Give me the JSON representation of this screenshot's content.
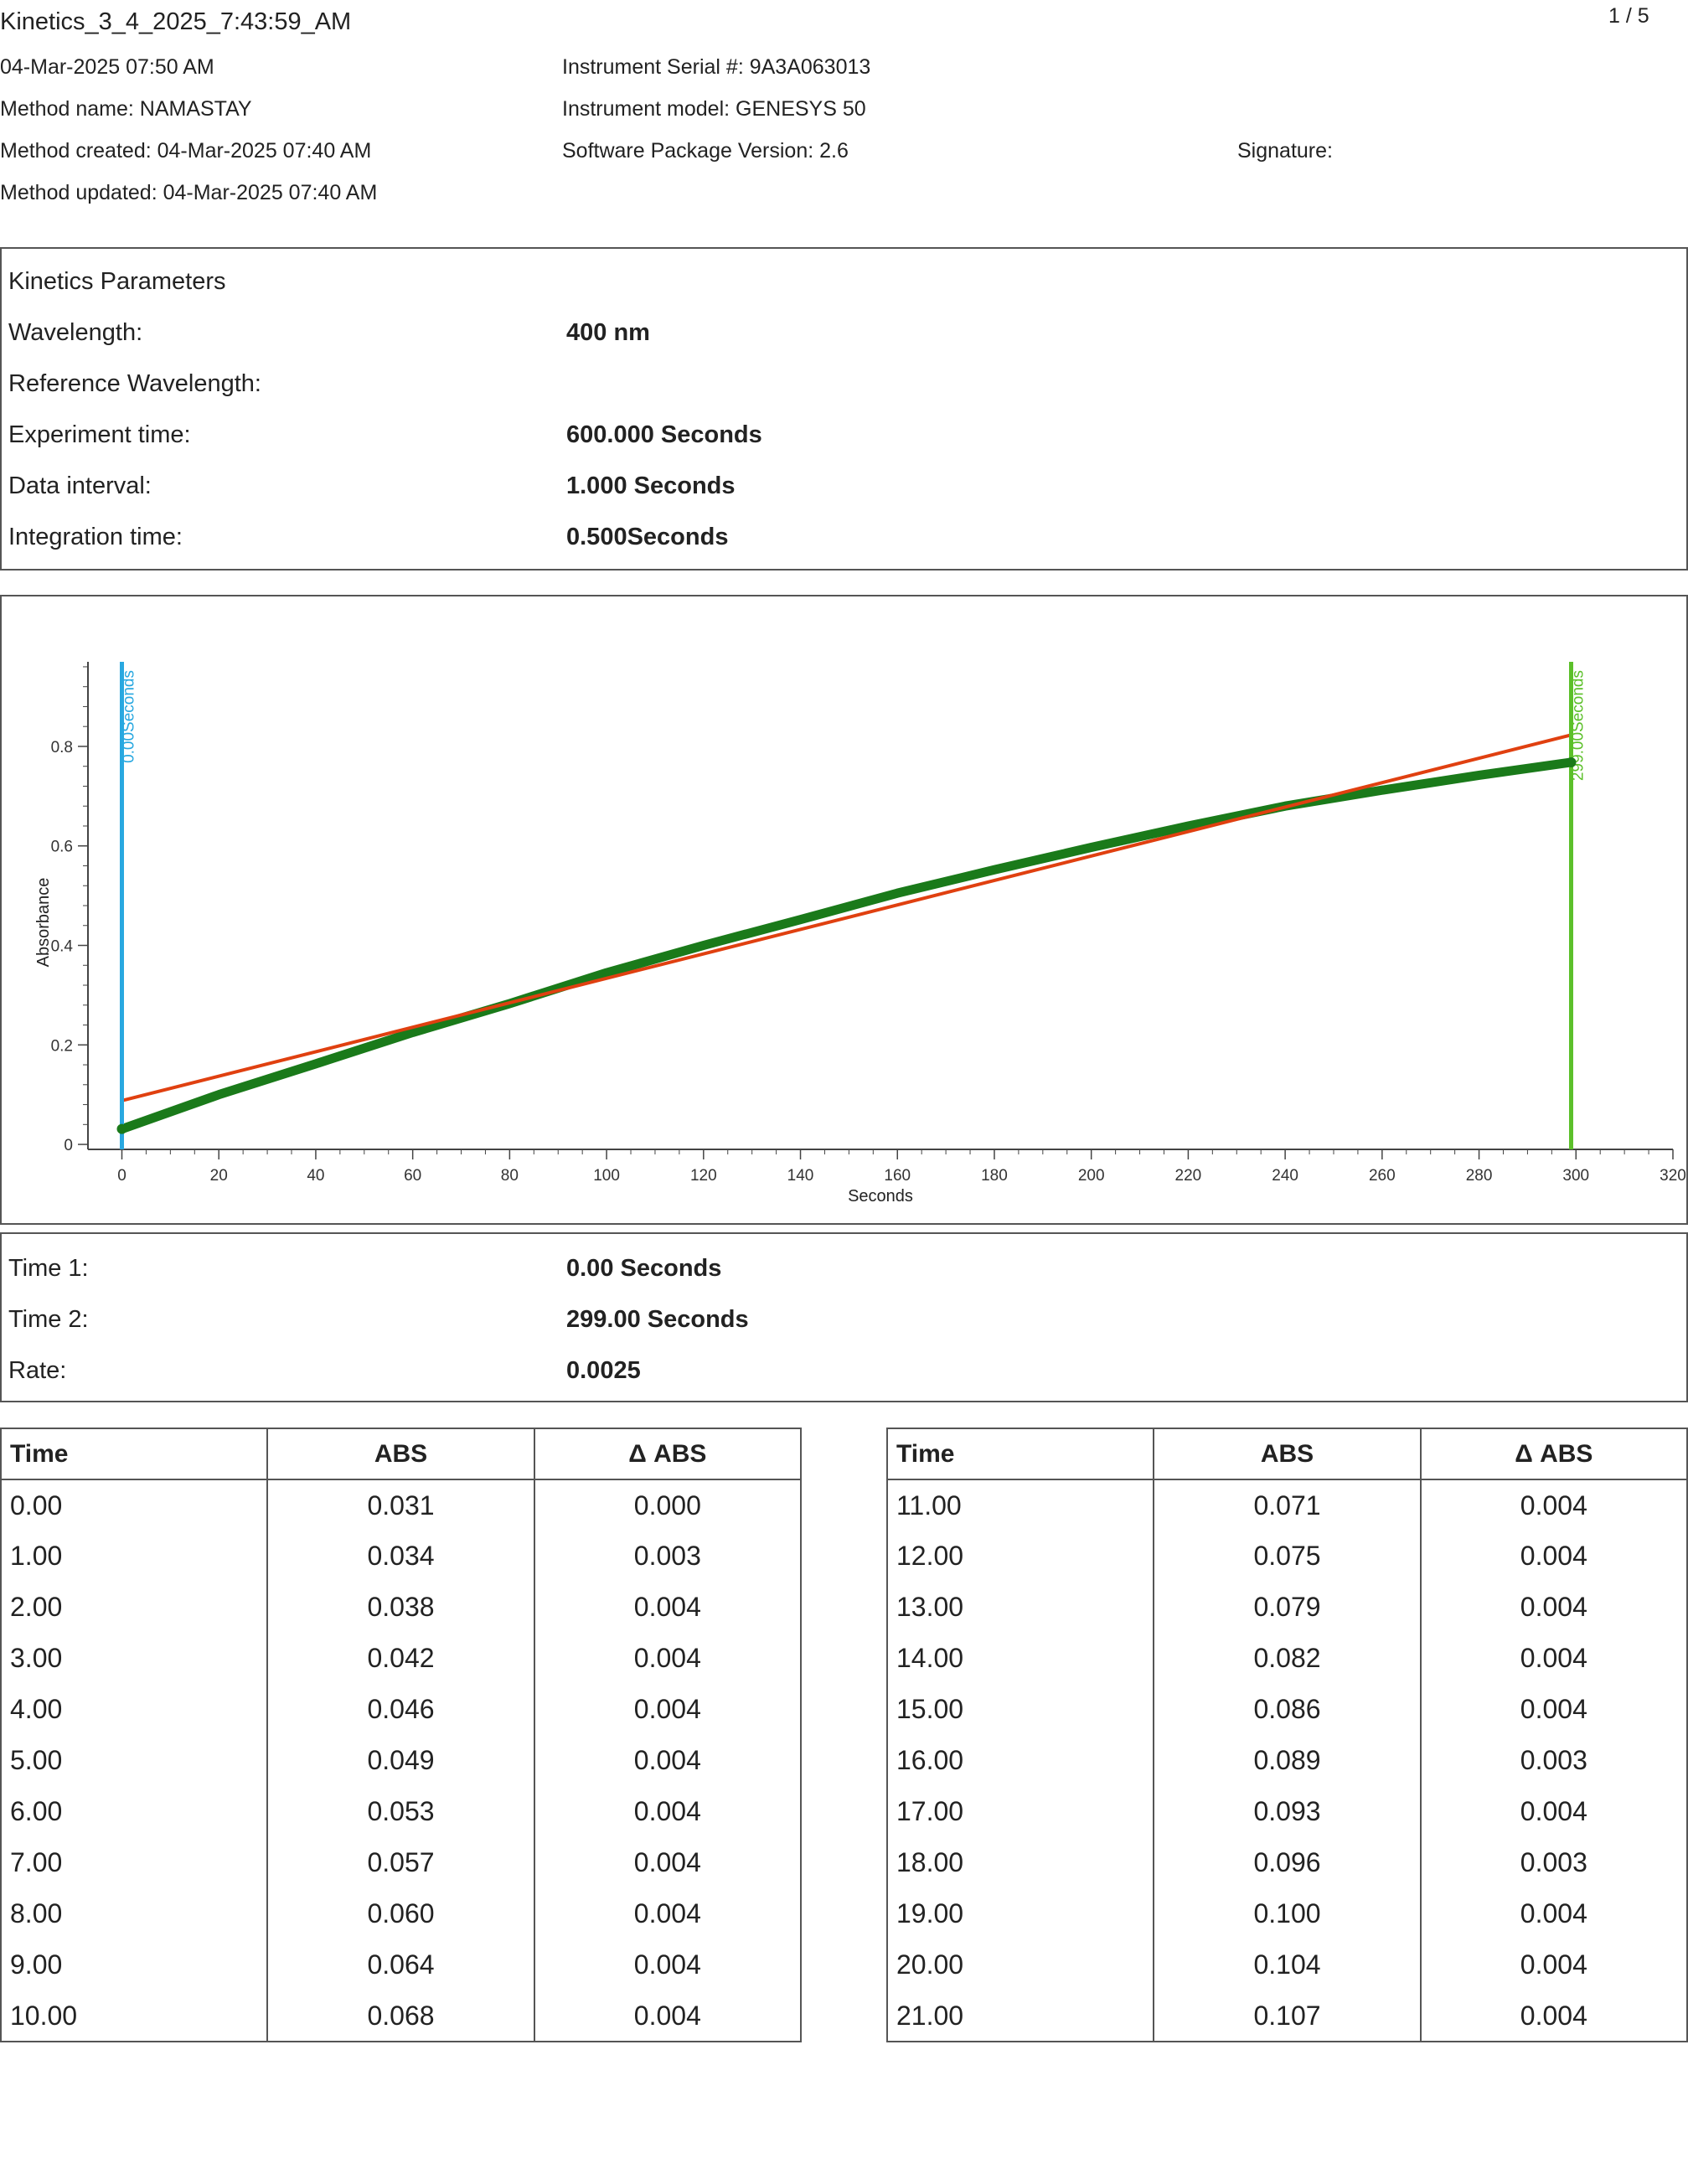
{
  "header": {
    "file_title": "Kinetics_3_4_2025_7:43:59_AM",
    "page_indicator": "1 / 5",
    "date": "04-Mar-2025 07:50 AM",
    "method_name": "Method name: NAMASTAY",
    "method_created": "Method created: 04-Mar-2025 07:40 AM",
    "method_updated": "Method updated: 04-Mar-2025 07:40 AM",
    "instrument_serial": "Instrument Serial #: 9A3A063013",
    "instrument_model": "Instrument model: GENESYS 50",
    "software_version": "Software Package Version: 2.6",
    "signature": "Signature:"
  },
  "params": {
    "heading": "Kinetics Parameters",
    "rows": [
      {
        "label": "Wavelength:",
        "value": "400 nm"
      },
      {
        "label": "Reference Wavelength:",
        "value": ""
      },
      {
        "label": "Experiment time:",
        "value": "600.000 Seconds"
      },
      {
        "label": "Data interval:",
        "value": "1.000 Seconds"
      },
      {
        "label": "Integration time:",
        "value": "0.500Seconds"
      }
    ]
  },
  "results": {
    "rows": [
      {
        "label": "Time 1:",
        "value": "0.00 Seconds"
      },
      {
        "label": "Time 2:",
        "value": "299.00 Seconds"
      },
      {
        "label": "Rate:",
        "value": "0.0025"
      }
    ]
  },
  "table": {
    "headers": [
      "Time",
      "ABS",
      "Δ ABS"
    ],
    "left": [
      [
        "0.00",
        "0.031",
        "0.000"
      ],
      [
        "1.00",
        "0.034",
        "0.003"
      ],
      [
        "2.00",
        "0.038",
        "0.004"
      ],
      [
        "3.00",
        "0.042",
        "0.004"
      ],
      [
        "4.00",
        "0.046",
        "0.004"
      ],
      [
        "5.00",
        "0.049",
        "0.004"
      ],
      [
        "6.00",
        "0.053",
        "0.004"
      ],
      [
        "7.00",
        "0.057",
        "0.004"
      ],
      [
        "8.00",
        "0.060",
        "0.004"
      ],
      [
        "9.00",
        "0.064",
        "0.004"
      ],
      [
        "10.00",
        "0.068",
        "0.004"
      ]
    ],
    "right": [
      [
        "11.00",
        "0.071",
        "0.004"
      ],
      [
        "12.00",
        "0.075",
        "0.004"
      ],
      [
        "13.00",
        "0.079",
        "0.004"
      ],
      [
        "14.00",
        "0.082",
        "0.004"
      ],
      [
        "15.00",
        "0.086",
        "0.004"
      ],
      [
        "16.00",
        "0.089",
        "0.003"
      ],
      [
        "17.00",
        "0.093",
        "0.004"
      ],
      [
        "18.00",
        "0.096",
        "0.003"
      ],
      [
        "19.00",
        "0.100",
        "0.004"
      ],
      [
        "20.00",
        "0.104",
        "0.004"
      ],
      [
        "21.00",
        "0.107",
        "0.004"
      ]
    ]
  },
  "chart_data": {
    "type": "line",
    "xlabel": "Seconds",
    "ylabel": "Absorbance",
    "xlim": [
      -7,
      320
    ],
    "ylim": [
      -0.01,
      0.97
    ],
    "x_ticks": [
      "0",
      "20",
      "40",
      "60",
      "80",
      "100",
      "120",
      "140",
      "160",
      "180",
      "200",
      "220",
      "240",
      "260",
      "280",
      "300",
      "320"
    ],
    "y_ticks": [
      "0",
      "0.2",
      "0.4",
      "0.6",
      "0.8"
    ],
    "grid": false,
    "legend": "none",
    "series": [
      {
        "color": "#1a7a1a",
        "x": [
          0,
          20,
          40,
          60,
          80,
          100,
          120,
          140,
          160,
          180,
          200,
          220,
          240,
          260,
          280,
          299
        ],
        "y": [
          0.031,
          0.1,
          0.162,
          0.225,
          0.283,
          0.345,
          0.4,
          0.452,
          0.505,
          0.552,
          0.597,
          0.64,
          0.68,
          0.712,
          0.742,
          0.768
        ]
      },
      {
        "color": "#e04010",
        "x": [
          0,
          299
        ],
        "y": [
          0.088,
          0.823
        ]
      }
    ],
    "markers": [
      {
        "x": 0,
        "label": "0.00Seconds",
        "color": "#29a8e0"
      },
      {
        "x": 299,
        "label": "299.00Seconds",
        "color": "#5cc02a"
      }
    ]
  }
}
